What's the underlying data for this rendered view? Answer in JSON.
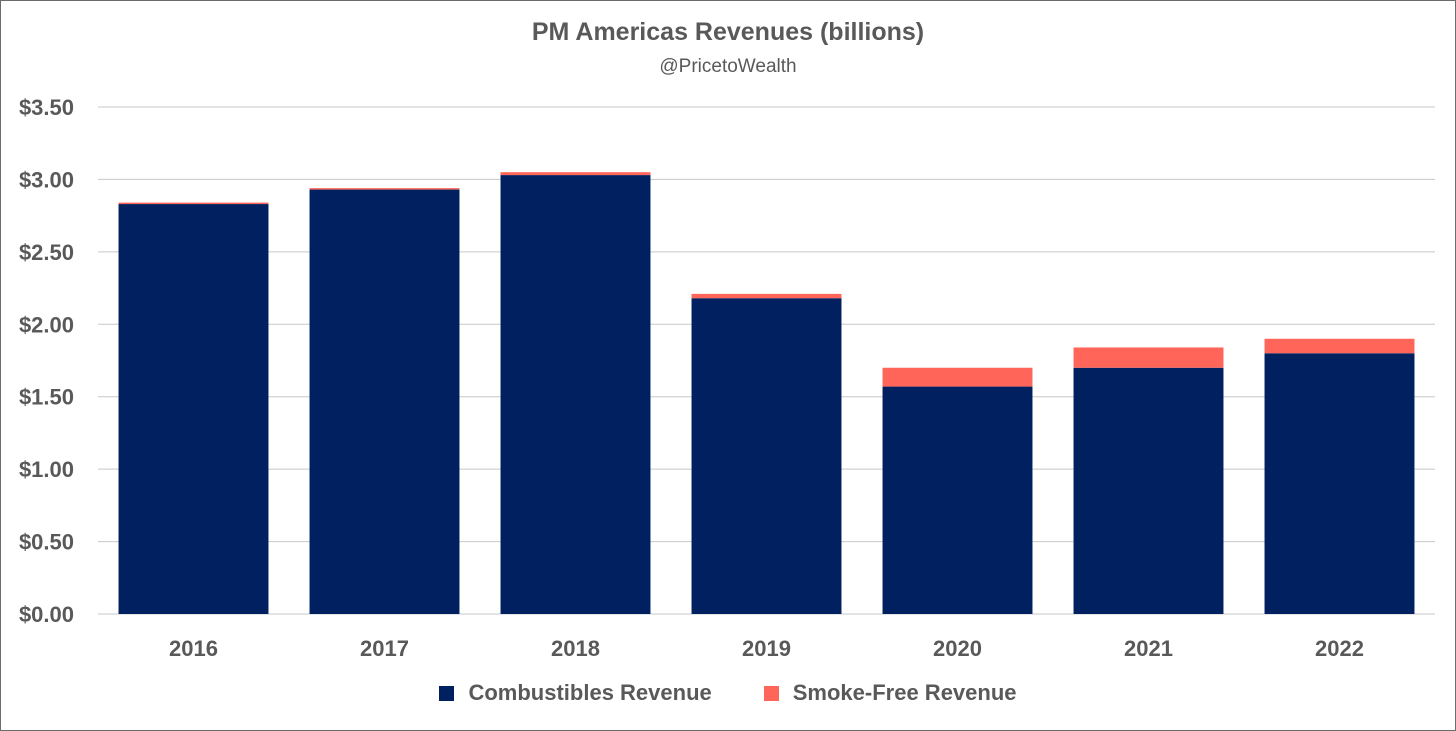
{
  "chart_data": {
    "type": "bar",
    "stacked": true,
    "title": "PM Americas Revenues (billions)",
    "subtitle": "@PricetoWealth",
    "categories": [
      "2016",
      "2017",
      "2018",
      "2019",
      "2020",
      "2021",
      "2022"
    ],
    "series": [
      {
        "name": "Combustibles Revenue",
        "color": "#002060",
        "values": [
          2.83,
          2.93,
          3.03,
          2.18,
          1.57,
          1.7,
          1.8
        ]
      },
      {
        "name": "Smoke-Free Revenue",
        "color": "#FF6659",
        "values": [
          0.01,
          0.01,
          0.02,
          0.03,
          0.13,
          0.14,
          0.1
        ]
      }
    ],
    "ylim": [
      0,
      3.5
    ],
    "yticks": [
      0,
      0.5,
      1.0,
      1.5,
      2.0,
      2.5,
      3.0,
      3.5
    ],
    "ytick_labels": [
      "$0.00",
      "$0.50",
      "$1.00",
      "$1.50",
      "$2.00",
      "$2.50",
      "$3.00",
      "$3.50"
    ],
    "xlabel": "",
    "ylabel": "",
    "grid": true,
    "legend_position": "bottom"
  }
}
